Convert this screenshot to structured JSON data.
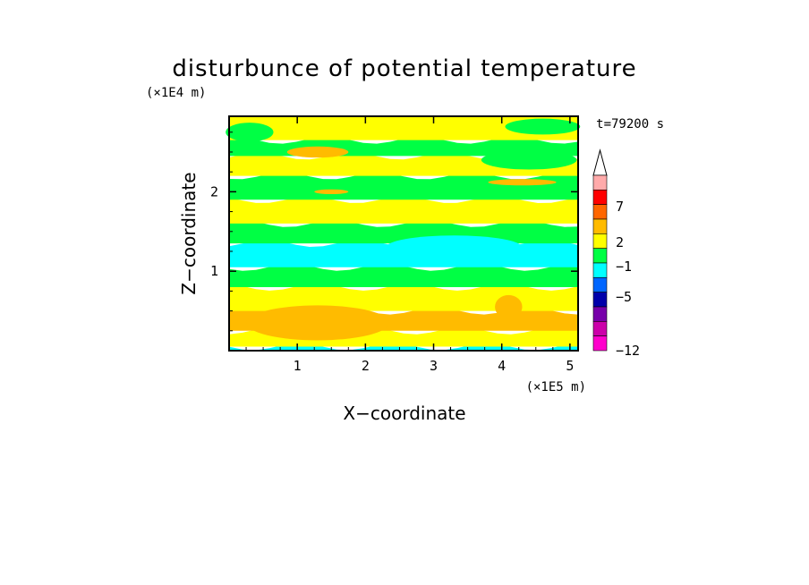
{
  "chart_data": {
    "type": "heatmap",
    "title": "disturbunce of potential temperature",
    "xlabel": "X−coordinate",
    "ylabel": "Z−coordinate",
    "x_unit": "(×1E5 m)",
    "y_unit": "(×1E4 m)",
    "time_label": "t=79200 s",
    "xlim": [
      0,
      5.12
    ],
    "ylim": [
      0,
      2.95
    ],
    "x_ticks": [
      "1",
      "2",
      "3",
      "4",
      "5"
    ],
    "y_ticks": [
      "1",
      "2"
    ],
    "colorbar": {
      "tick_labels": [
        "7",
        "2",
        "−1",
        "−5",
        "−12"
      ],
      "colors": [
        "#ffaaaa",
        "#ff0000",
        "#ff6600",
        "#ffbb00",
        "#ffff00",
        "#00ff44",
        "#00ffff",
        "#0066ff",
        "#0000aa",
        "#7700aa",
        "#cc00aa",
        "#ff00cc"
      ]
    },
    "field_bands": [
      {
        "z0": 0.0,
        "z1": 0.05,
        "level": "#00ffff"
      },
      {
        "z0": 0.05,
        "z1": 0.25,
        "level": "#ffff00"
      },
      {
        "z0": 0.25,
        "z1": 0.5,
        "level": "#ffbb00"
      },
      {
        "z0": 0.5,
        "z1": 0.8,
        "level": "#ffff00"
      },
      {
        "z0": 0.8,
        "z1": 1.05,
        "level": "#00ff44"
      },
      {
        "z0": 1.05,
        "z1": 1.35,
        "level": "#00ffff"
      },
      {
        "z0": 1.35,
        "z1": 1.6,
        "level": "#00ff44"
      },
      {
        "z0": 1.6,
        "z1": 1.9,
        "level": "#ffff00"
      },
      {
        "z0": 1.9,
        "z1": 2.2,
        "level": "#00ff44"
      },
      {
        "z0": 2.2,
        "z1": 2.45,
        "level": "#ffff00"
      },
      {
        "z0": 2.45,
        "z1": 2.65,
        "level": "#00ff44"
      },
      {
        "z0": 2.65,
        "z1": 2.95,
        "level": "#ffff00"
      }
    ]
  }
}
